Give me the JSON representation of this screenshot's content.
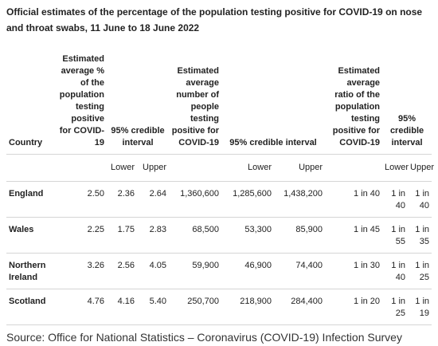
{
  "title": "Official estimates of the percentage of the population testing positive for COVID-19 on nose and throat swabs, 11 June to 18 June 2022",
  "headers": {
    "country": "Country",
    "pct": "Estimated average % of the population testing positive for COVID-19",
    "ci1": "95% credible interval",
    "num": "Estimated average number of people testing positive for COVID-19",
    "ci2": "95% credible interval",
    "ratio": "Estimated average ratio of the population testing positive for COVID-19",
    "ci3": "95% credible interval"
  },
  "sub": {
    "lower": "Lower",
    "upper": "Upper"
  },
  "rows": [
    {
      "country": "England",
      "pct": "2.50",
      "pct_low": "2.36",
      "pct_up": "2.64",
      "num": "1,360,600",
      "num_low": "1,285,600",
      "num_up": "1,438,200",
      "ratio": "1 in 40",
      "ratio_low": "1 in 40",
      "ratio_up": "1 in 40"
    },
    {
      "country": "Wales",
      "pct": "2.25",
      "pct_low": "1.75",
      "pct_up": "2.83",
      "num": "68,500",
      "num_low": "53,300",
      "num_up": "85,900",
      "ratio": "1 in 45",
      "ratio_low": "1 in 55",
      "ratio_up": "1 in 35"
    },
    {
      "country": "Northern Ireland",
      "pct": "3.26",
      "pct_low": "2.56",
      "pct_up": "4.05",
      "num": "59,900",
      "num_low": "46,900",
      "num_up": "74,400",
      "ratio": "1 in 30",
      "ratio_low": "1 in 40",
      "ratio_up": "1 in 25"
    },
    {
      "country": "Scotland",
      "pct": "4.76",
      "pct_low": "4.16",
      "pct_up": "5.40",
      "num": "250,700",
      "num_low": "218,900",
      "num_up": "284,400",
      "ratio": "1 in 20",
      "ratio_low": "1 in 25",
      "ratio_up": "1 in 19"
    }
  ],
  "source": "Source: Office for National Statistics – Coronavirus (COVID-19) Infection Survey"
}
